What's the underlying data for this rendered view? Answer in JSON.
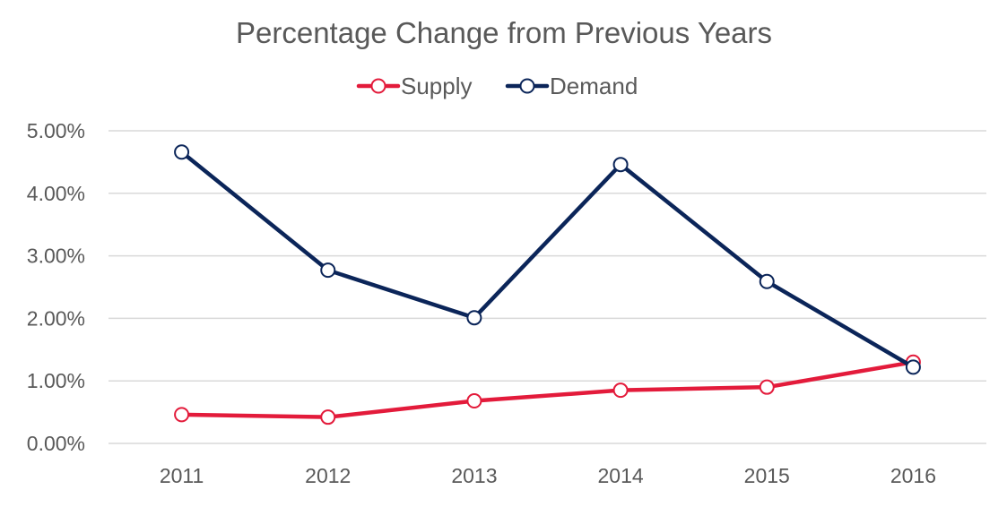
{
  "chart_data": {
    "type": "line",
    "title": "Percentage Change from Previous Years",
    "xlabel": "",
    "ylabel": "",
    "categories": [
      "2011",
      "2012",
      "2013",
      "2014",
      "2015",
      "2016"
    ],
    "series": [
      {
        "name": "Supply",
        "color": "#E31B3B",
        "values": [
          0.46,
          0.42,
          0.68,
          0.85,
          0.9,
          1.3
        ]
      },
      {
        "name": "Demand",
        "color": "#0B2559",
        "values": [
          4.66,
          2.77,
          2.01,
          4.46,
          2.59,
          1.22
        ]
      }
    ],
    "ylim": [
      0,
      5
    ],
    "yticks": [
      "0.00%",
      "1.00%",
      "2.00%",
      "3.00%",
      "4.00%",
      "5.00%"
    ],
    "grid": true,
    "legend_position": "top-center",
    "marker": "hollow-circle"
  }
}
